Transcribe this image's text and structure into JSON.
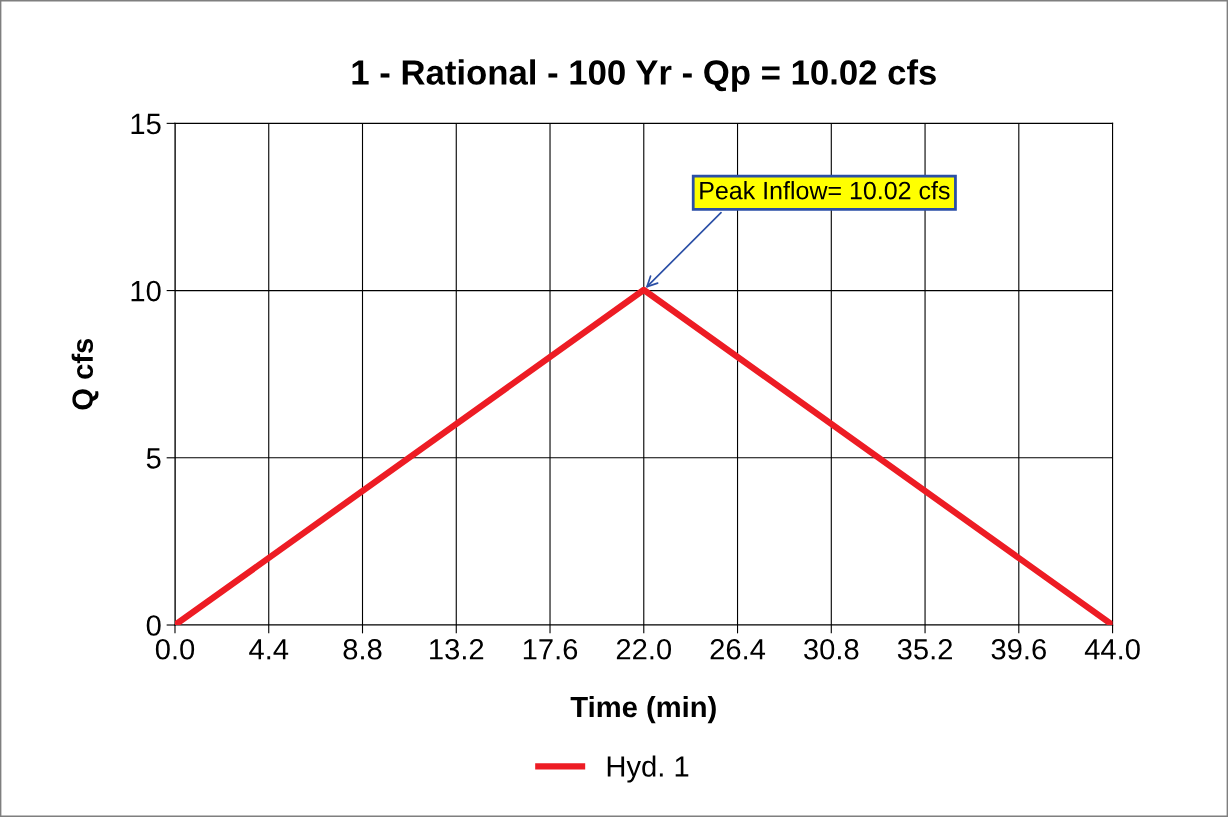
{
  "chart_data": {
    "type": "line",
    "title": "1 - Rational - 100 Yr - Qp = 10.02 cfs",
    "xlabel": "Time (min)",
    "ylabel": "Q cfs",
    "x": [
      0,
      22,
      44
    ],
    "series": [
      {
        "name": "Hyd. 1",
        "color": "#ed1c24",
        "values": [
          0,
          10.02,
          0
        ]
      }
    ],
    "xlim": [
      0,
      44
    ],
    "xticks": [
      {
        "value": 0,
        "label": "0.0"
      },
      {
        "value": 4.4,
        "label": "4.4"
      },
      {
        "value": 8.8,
        "label": "8.8"
      },
      {
        "value": 13.2,
        "label": "13.2"
      },
      {
        "value": 17.6,
        "label": "17.6"
      },
      {
        "value": 22,
        "label": "22.0"
      },
      {
        "value": 26.4,
        "label": "26.4"
      },
      {
        "value": 30.8,
        "label": "30.8"
      },
      {
        "value": 35.2,
        "label": "35.2"
      },
      {
        "value": 39.6,
        "label": "39.6"
      },
      {
        "value": 44,
        "label": "44.0"
      }
    ],
    "ylim": [
      0,
      15
    ],
    "yticks": [
      0,
      5,
      10,
      15
    ],
    "annotations": [
      {
        "text": "Peak Inflow= 10.02 cfs",
        "x": 22,
        "y": 10.02
      }
    ],
    "grid": true,
    "legend": "bottom",
    "marker": "none",
    "line_style": "solid"
  }
}
